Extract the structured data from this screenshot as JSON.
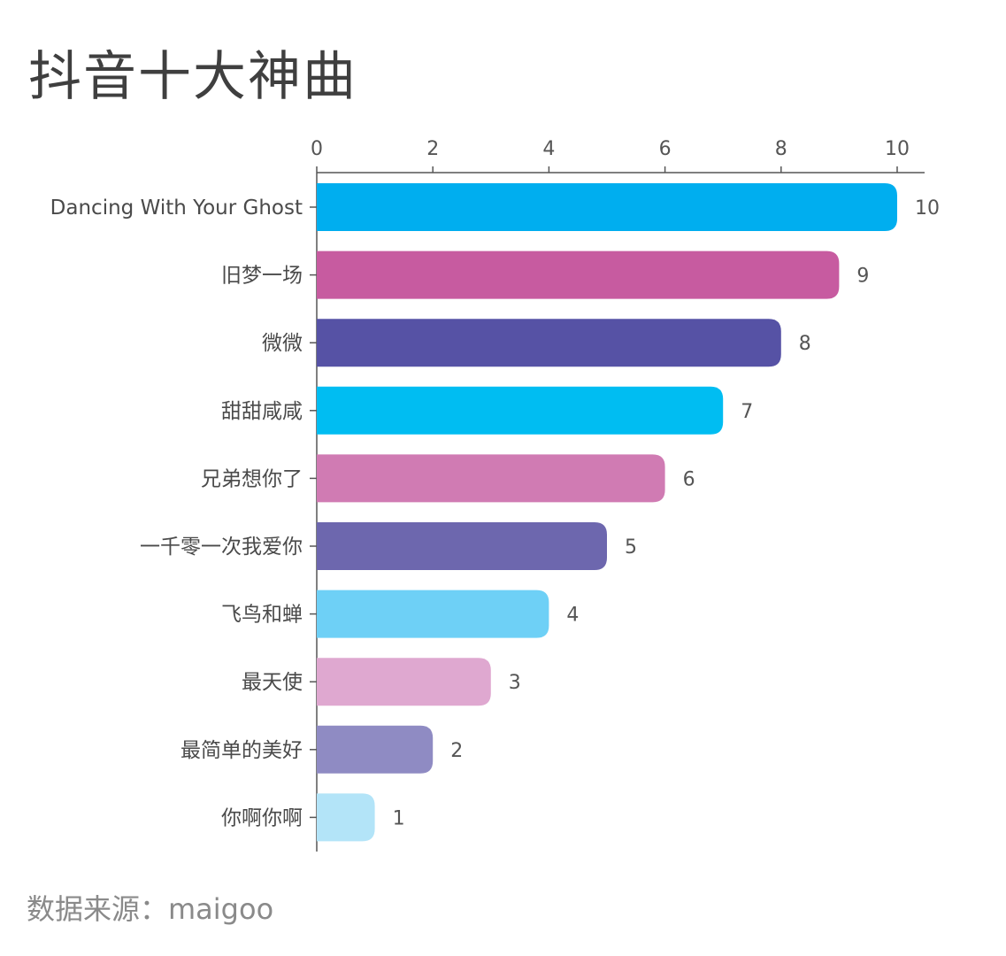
{
  "header": {
    "title": "抖音十大神曲"
  },
  "footer": {
    "source": "数据来源：maigoo"
  },
  "chart_data": {
    "type": "bar",
    "orientation": "horizontal",
    "title": "抖音十大神曲",
    "xlabel": "",
    "ylabel": "",
    "xlim": [
      0,
      10.5
    ],
    "xticks": [
      0,
      2,
      4,
      6,
      8,
      10
    ],
    "grid": false,
    "legend": "none",
    "categories": [
      "Dancing With Your Ghost",
      "旧梦一场",
      "微微",
      "甜甜咸咸",
      "兄弟想你了",
      "一千零一次我爱你",
      "飞鸟和蝉",
      "最天使",
      "最简单的美好",
      "你啊你啊"
    ],
    "values": [
      10,
      9,
      8,
      7,
      6,
      5,
      4,
      3,
      2,
      1
    ],
    "colors": [
      "#00AEEF",
      "#C75BA0",
      "#5652A5",
      "#00BDF2",
      "#D07BB3",
      "#6D67AE",
      "#6ED0F6",
      "#DFA8D0",
      "#8F8BC3",
      "#B3E4F8"
    ],
    "data_labels": true
  }
}
